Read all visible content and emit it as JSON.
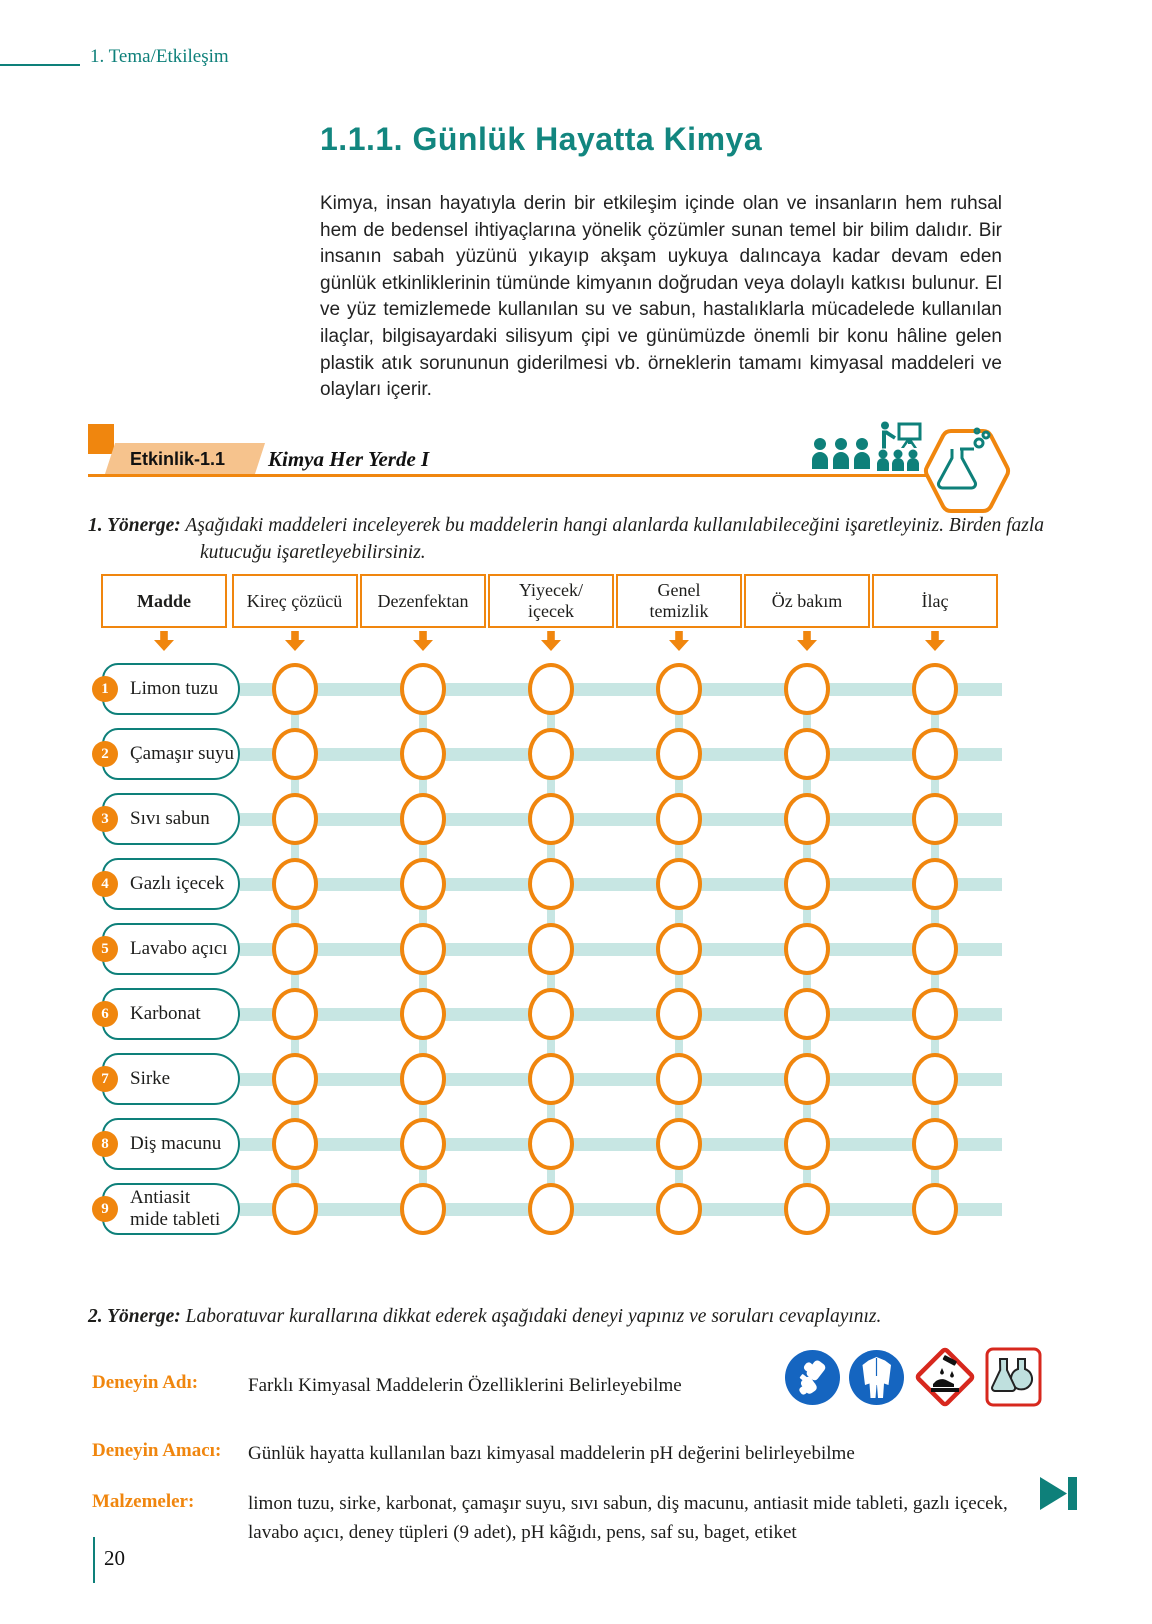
{
  "theme": {
    "teal": "#0E807A",
    "light-teal": "#C7E6E3",
    "orange": "#F0860E",
    "light-orange": "#F6C38D",
    "blue": "#1565C0",
    "red": "#D7281E"
  },
  "header": {
    "breadcrumb": "1. Tema/Etkileşim"
  },
  "section": {
    "title": "1.1.1. Günlük Hayatta Kimya",
    "intro": "Kimya, insan hayatıyla derin bir etkileşim içinde olan ve insanların hem ruhsal hem de bedensel ihtiyaçlarına yönelik çözümler sunan temel bir bilim dalıdır. Bir insanın sabah yüzünü yıkayıp akşam uykuya dalıncaya kadar devam eden günlük etkinliklerinin tümünde kimyanın doğrudan veya dolaylı katkısı bulunur. El ve yüz temizlemede kullanılan su ve sabun, hastalıklarla mücadelede kullanılan ilaçlar, bilgisayardaki silisyum çipi ve günümüzde önemli bir konu hâline gelen plastik atık sorununun giderilmesi vb. örneklerin tamamı kimyasal maddeleri ve olayları içerir."
  },
  "activity": {
    "badge": "Etkinlik-1.1",
    "name": "Kimya Her Yerde I",
    "icons": [
      "group-work-icon",
      "presentation-icon",
      "experiment-flask-icon"
    ]
  },
  "instructions": {
    "first_label": "1. Yönerge:",
    "first_text": "Aşağıdaki maddeleri inceleyerek bu maddelerin hangi alanlarda kullanılabileceğini işaretleyiniz. Birden fazla kutucuğu işaretleyebilirsiniz.",
    "second_label": "2. Yönerge:",
    "second_text": "Laboratuvar kurallarına dikkat ederek aşağıdaki deneyi yapınız ve soruları cevaplayınız."
  },
  "matrix": {
    "columns": [
      "Madde",
      "Kireç çözücü",
      "Dezenfektan",
      "Yiyecek/\niçecek",
      "Genel\ntemizlik",
      "Öz bakım",
      "İlaç"
    ],
    "rows": [
      {
        "number": "1",
        "label": "Limon tuzu"
      },
      {
        "number": "2",
        "label": "Çamaşır suyu"
      },
      {
        "number": "3",
        "label": "Sıvı sabun"
      },
      {
        "number": "4",
        "label": "Gazlı içecek"
      },
      {
        "number": "5",
        "label": "Lavabo açıcı"
      },
      {
        "number": "6",
        "label": "Karbonat"
      },
      {
        "number": "7",
        "label": "Sirke"
      },
      {
        "number": "8",
        "label": "Diş macunu"
      },
      {
        "number": "9",
        "label": "Antiasit\nmide tableti"
      }
    ],
    "checked": []
  },
  "experiment": {
    "name_label": "Deneyin Adı:",
    "name": "Farklı Kimyasal Maddelerin Özelliklerini Belirleyebilme",
    "purpose_label": "Deneyin Amacı:",
    "purpose": "Günlük hayatta kullanılan bazı kimyasal maddelerin pH değerini belirleyebilme",
    "materials_label": "Malzemeler:",
    "materials": "limon tuzu, sirke, karbonat, çamaşır suyu, sıvı sabun, diş macunu, antiasit mide tableti, gazlı içecek, lavabo açıcı, deney tüpleri (9 adet), pH kâğıdı, pens, saf su, baget, etiket",
    "safety_icons": [
      "gloves-icon",
      "protective-clothing-icon",
      "corrosive-hazard-icon",
      "laboratory-chemicals-icon"
    ]
  },
  "footer": {
    "page_number": "20"
  }
}
